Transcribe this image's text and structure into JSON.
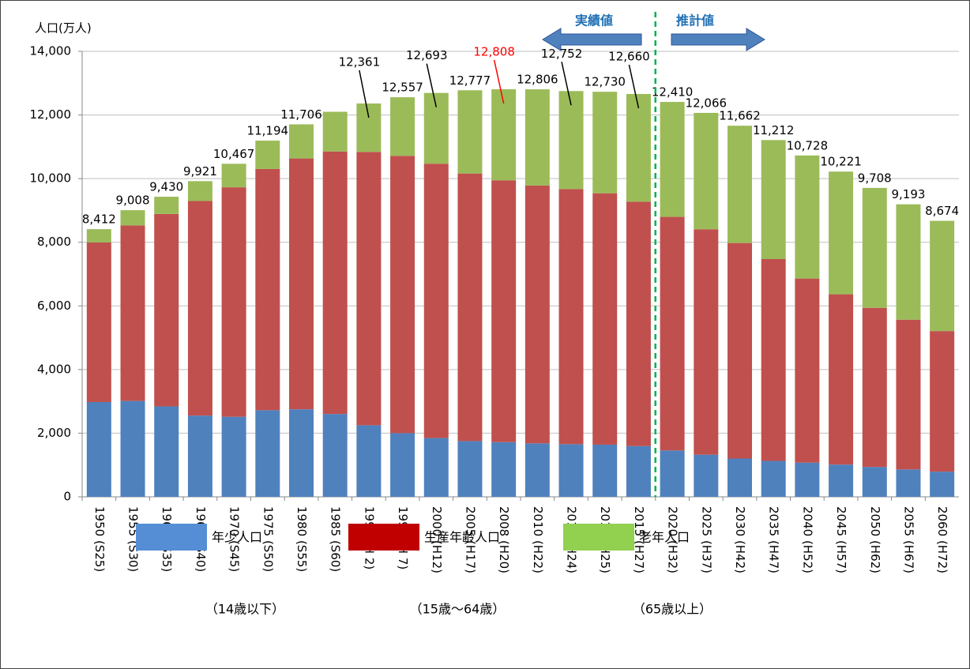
{
  "chart_data": {
    "type": "stacked_bar",
    "y_label": "人口(万人)",
    "categories": [
      "1950 (S25)",
      "1955 (S30)",
      "1960 (S35)",
      "1965 (S40)",
      "1970 (S45)",
      "1975 (S50)",
      "1980 (S55)",
      "1985 (S60)",
      "1990 (H 2)",
      "1995 (H 7)",
      "2000 (H12)",
      "2005 (H17)",
      "2008 (H20)",
      "2010 (H22)",
      "2012 (H24)",
      "2013 (H25)",
      "2015 (H27)",
      "2020 (H32)",
      "2025 (H37)",
      "2030 (H42)",
      "2035 (H47)",
      "2040 (H52)",
      "2045 (H57)",
      "2050 (H62)",
      "2055 (H67)",
      "2060 (H72)"
    ],
    "series": [
      {
        "name": "年少人口",
        "note": "（14歳以下）",
        "color": "#4f81bd",
        "legend_color": "#558ed5",
        "values": [
          2979,
          3012,
          2843,
          2553,
          2515,
          2722,
          2751,
          2603,
          2249,
          2001,
          1847,
          1752,
          1718,
          1680,
          1655,
          1639,
          1595,
          1457,
          1324,
          1204,
          1129,
          1073,
          1012,
          939,
          861,
          791
        ]
      },
      {
        "name": "生産年齢人口",
        "note": "（15歳〜64歳）",
        "color": "#c0504d",
        "legend_color": "#c00000",
        "values": [
          5017,
          5517,
          6047,
          6744,
          7212,
          7581,
          7883,
          8251,
          8590,
          8716,
          8622,
          8409,
          8230,
          8103,
          8018,
          7901,
          7682,
          7341,
          7085,
          6773,
          6343,
          5787,
          5353,
          5001,
          4706,
          4418
        ]
      },
      {
        "name": "老年人口",
        "note": "（65歳以上）",
        "color": "#9bbb59",
        "legend_color": "#92d050",
        "values": [
          416,
          479,
          540,
          624,
          740,
          891,
          1072,
          1247,
          1522,
          1840,
          2224,
          2616,
          2860,
          3023,
          3079,
          3190,
          3383,
          3612,
          3657,
          3685,
          3740,
          3868,
          3856,
          3768,
          3626,
          3465
        ]
      }
    ],
    "total_labels": [
      "8,412",
      "9,008",
      "9,430",
      "9,921",
      "10,467",
      "11,194",
      "11,706",
      null,
      "12,361",
      "12,557",
      "12,693",
      "12,777",
      "12,808",
      "12,806",
      "12,752",
      "12,730",
      "12,660",
      "12,410",
      "12,066",
      "11,662",
      "11,212",
      "10,728",
      "10,221",
      "9,708",
      "9,193",
      "8,674"
    ],
    "highlight_label_color": {
      "category": "2008 (H20)",
      "color": "#ff0000"
    },
    "annotations": {
      "actual": "実績値",
      "projected": "推計値"
    },
    "ylim": [
      0,
      14000
    ],
    "yticks": [
      0,
      {
        "value": 2000,
        "label": "2,000"
      },
      {
        "value": 4000,
        "label": "4,000"
      },
      {
        "value": 6000,
        "label": "6,000"
      },
      {
        "value": 8000,
        "label": "8,000"
      },
      {
        "value": 10000,
        "label": "10,000"
      },
      {
        "value": 12000,
        "label": "12,000"
      },
      {
        "value": 14000,
        "label": "14,000"
      }
    ],
    "grid": true
  }
}
